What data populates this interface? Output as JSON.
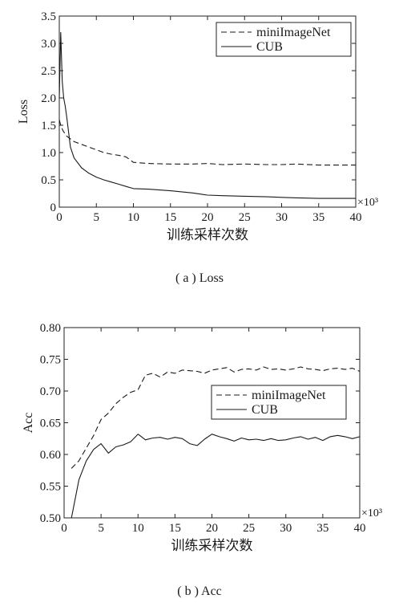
{
  "chart_data": [
    {
      "type": "line",
      "caption": "( a ) Loss",
      "xlabel": "训练采样次数",
      "ylabel": "Loss",
      "x_multiplier": "×10³",
      "xlim": [
        0,
        40
      ],
      "ylim": [
        0,
        3.5
      ],
      "xticks": [
        0,
        5,
        10,
        15,
        20,
        25,
        30,
        35,
        40
      ],
      "yticks": [
        0,
        0.5,
        1.0,
        1.5,
        2.0,
        2.5,
        3.0,
        3.5
      ],
      "ytick_labels": [
        "0",
        "0.5",
        "1.0",
        "1.5",
        "2.0",
        "2.5",
        "3.0",
        "3.5"
      ],
      "grid": false,
      "legend_position": "top-right",
      "series": [
        {
          "name": "miniImageNet",
          "style": "dashed",
          "x": [
            0,
            0.2,
            0.5,
            1,
            1.5,
            2,
            3,
            4,
            5,
            6,
            7,
            8,
            9,
            10,
            12,
            15,
            18,
            20,
            22,
            25,
            28,
            30,
            32,
            35,
            38,
            40
          ],
          "y": [
            1.6,
            1.5,
            1.4,
            1.3,
            1.25,
            1.2,
            1.15,
            1.1,
            1.05,
            1.0,
            0.97,
            0.95,
            0.92,
            0.82,
            0.8,
            0.79,
            0.79,
            0.8,
            0.78,
            0.79,
            0.78,
            0.78,
            0.79,
            0.77,
            0.77,
            0.77
          ]
        },
        {
          "name": "CUB",
          "style": "solid",
          "x": [
            0,
            0.2,
            0.4,
            0.6,
            0.8,
            1,
            1.5,
            2,
            3,
            4,
            5,
            6,
            7,
            8,
            9,
            10,
            12,
            15,
            18,
            20,
            22,
            25,
            28,
            30,
            32,
            35,
            38,
            40
          ],
          "y": [
            2.0,
            3.2,
            2.3,
            2.0,
            1.85,
            1.65,
            1.1,
            0.9,
            0.72,
            0.62,
            0.55,
            0.5,
            0.46,
            0.42,
            0.38,
            0.34,
            0.33,
            0.3,
            0.26,
            0.22,
            0.21,
            0.2,
            0.19,
            0.18,
            0.17,
            0.16,
            0.16,
            0.16
          ]
        }
      ]
    },
    {
      "type": "line",
      "caption": "( b ) Acc",
      "xlabel": "训练采样次数",
      "ylabel": "Acc",
      "x_multiplier": "×10³",
      "xlim": [
        0,
        40
      ],
      "ylim": [
        0.5,
        0.8
      ],
      "xticks": [
        0,
        5,
        10,
        15,
        20,
        25,
        30,
        35,
        40
      ],
      "yticks": [
        0.5,
        0.55,
        0.6,
        0.65,
        0.7,
        0.75,
        0.8
      ],
      "ytick_labels": [
        "0.50",
        "0.55",
        "0.60",
        "0.65",
        "0.70",
        "0.75",
        "0.80"
      ],
      "grid": false,
      "legend_position": "center-right",
      "series": [
        {
          "name": "miniImageNet",
          "style": "dashed",
          "x": [
            1,
            2,
            3,
            4,
            5,
            6,
            7,
            8,
            9,
            10,
            11,
            12,
            13,
            14,
            15,
            16,
            17,
            18,
            19,
            20,
            21,
            22,
            23,
            24,
            25,
            26,
            27,
            28,
            29,
            30,
            31,
            32,
            33,
            34,
            35,
            36,
            37,
            38,
            39,
            40
          ],
          "y": [
            0.578,
            0.59,
            0.61,
            0.63,
            0.655,
            0.665,
            0.68,
            0.69,
            0.698,
            0.702,
            0.725,
            0.728,
            0.722,
            0.73,
            0.728,
            0.733,
            0.732,
            0.731,
            0.728,
            0.733,
            0.735,
            0.737,
            0.73,
            0.734,
            0.735,
            0.733,
            0.738,
            0.734,
            0.735,
            0.733,
            0.735,
            0.738,
            0.735,
            0.734,
            0.732,
            0.735,
            0.736,
            0.734,
            0.736,
            0.731
          ]
        },
        {
          "name": "CUB",
          "style": "solid",
          "x": [
            1,
            2,
            3,
            4,
            5,
            6,
            7,
            8,
            9,
            10,
            11,
            12,
            13,
            14,
            15,
            16,
            17,
            18,
            19,
            20,
            21,
            22,
            23,
            24,
            25,
            26,
            27,
            28,
            29,
            30,
            31,
            32,
            33,
            34,
            35,
            36,
            37,
            38,
            39,
            40
          ],
          "y": [
            0.5,
            0.56,
            0.59,
            0.608,
            0.617,
            0.602,
            0.612,
            0.615,
            0.62,
            0.632,
            0.623,
            0.626,
            0.627,
            0.624,
            0.627,
            0.625,
            0.617,
            0.614,
            0.624,
            0.632,
            0.628,
            0.625,
            0.621,
            0.626,
            0.623,
            0.624,
            0.622,
            0.625,
            0.622,
            0.623,
            0.626,
            0.628,
            0.624,
            0.627,
            0.622,
            0.628,
            0.63,
            0.628,
            0.625,
            0.628
          ]
        }
      ]
    }
  ]
}
